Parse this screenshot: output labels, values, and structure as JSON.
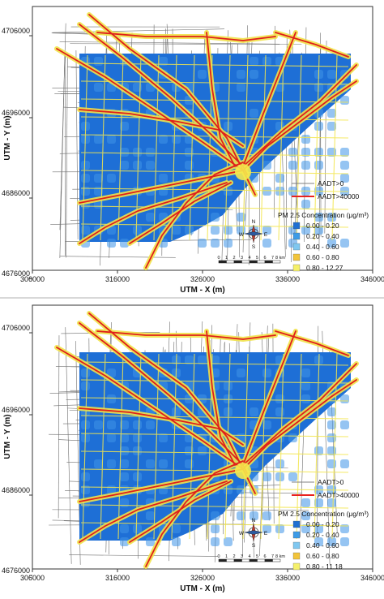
{
  "panels": [
    {
      "x_axis": {
        "label": "UTM - X (m)",
        "ticks": [
          "306000",
          "316000",
          "326000",
          "336000",
          "346000"
        ]
      },
      "y_axis": {
        "label": "UTM - Y (m)",
        "ticks": [
          "4706000",
          "4696000",
          "4686000",
          "4676000"
        ]
      },
      "legend": {
        "line_items": [
          {
            "label": "AADT>0",
            "color": "#808080"
          },
          {
            "label": "AADT>40000",
            "color": "#e8221e"
          }
        ],
        "concentration_title": "PM 2.5 Concentration (μg/m³)",
        "classes": [
          {
            "label": "0.00 - 0.20",
            "color": "#1f6fd1"
          },
          {
            "label": "0.20 - 0.40",
            "color": "#3d9be6"
          },
          {
            "label": "0.40 - 0.60",
            "color": "#7fc7f0"
          },
          {
            "label": "0.60 - 0.80",
            "color": "#f2c43a"
          },
          {
            "label": "0.80 - 12.27",
            "color": "#f5f06a"
          }
        ]
      },
      "compass": {
        "n": "N",
        "s": "S",
        "e": "E",
        "w": "W"
      },
      "scalebar": {
        "labels": [
          "0",
          "1",
          "2",
          "3",
          "4",
          "5",
          "6",
          "7",
          "8 km"
        ]
      }
    },
    {
      "x_axis": {
        "label": "UTM - X (m)",
        "ticks": [
          "306000",
          "316000",
          "326000",
          "336000",
          "346000"
        ]
      },
      "y_axis": {
        "label": "UTM - Y (m)",
        "ticks": [
          "4706000",
          "4696000",
          "4686000",
          "4676000"
        ]
      },
      "legend": {
        "line_items": [
          {
            "label": "AADT>0",
            "color": "#808080"
          },
          {
            "label": "AADT>40000",
            "color": "#e8221e"
          }
        ],
        "concentration_title": "PM 2.5 Concentration (μg/m³)",
        "classes": [
          {
            "label": "0.00 - 0.20",
            "color": "#1f6fd1"
          },
          {
            "label": "0.20 - 0.40",
            "color": "#3d9be6"
          },
          {
            "label": "0.40 - 0.60",
            "color": "#7fc7f0"
          },
          {
            "label": "0.60 - 0.80",
            "color": "#f2c43a"
          },
          {
            "label": "0.80 - 11.18",
            "color": "#f5f06a"
          }
        ]
      },
      "compass": {
        "n": "N",
        "s": "S",
        "e": "E",
        "w": "W"
      },
      "scalebar": {
        "labels": [
          "0",
          "1",
          "2",
          "3",
          "4",
          "5",
          "6",
          "7",
          "8 km"
        ]
      }
    }
  ]
}
